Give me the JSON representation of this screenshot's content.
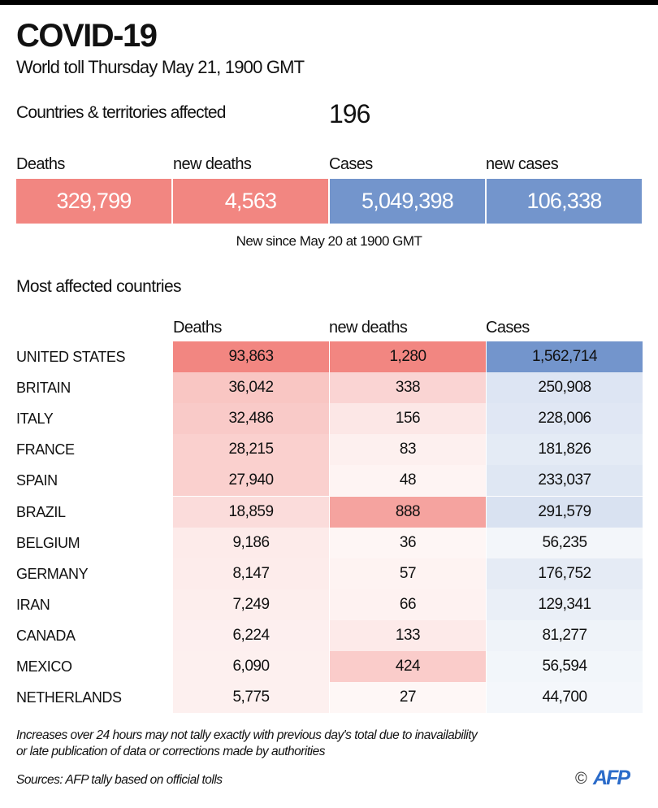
{
  "title": "COVID-19",
  "subtitle": "World toll Thursday May 21, 1900 GMT",
  "affected": {
    "label": "Countries & territories affected",
    "value": "196"
  },
  "summary": [
    {
      "label": "Deaths",
      "value": "329,799",
      "color": "#f28681"
    },
    {
      "label": "new deaths",
      "value": "4,563",
      "color": "#f28681"
    },
    {
      "label": "Cases",
      "value": "5,049,398",
      "color": "#7395cc"
    },
    {
      "label": "new cases",
      "value": "106,338",
      "color": "#7395cc"
    }
  ],
  "new_since": "New since  May 20 at 1900 GMT",
  "section_title": "Most affected countries",
  "chart_data": {
    "type": "table",
    "title": "Most affected countries",
    "columns": [
      "Deaths",
      "new deaths",
      "Cases"
    ],
    "column_colors": [
      "#f28681",
      "#f28681",
      "#7395cc"
    ],
    "rows": [
      {
        "country": "UNITED STATES",
        "values": [
          "93,863",
          "1,280",
          "1,562,714"
        ]
      },
      {
        "country": "BRITAIN",
        "values": [
          "36,042",
          "338",
          "250,908"
        ]
      },
      {
        "country": "ITALY",
        "values": [
          "32,486",
          "156",
          "228,006"
        ]
      },
      {
        "country": "FRANCE",
        "values": [
          "28,215",
          "83",
          "181,826"
        ]
      },
      {
        "country": "SPAIN",
        "values": [
          "27,940",
          "48",
          "233,037"
        ]
      },
      {
        "country": "BRAZIL",
        "values": [
          "18,859",
          "888",
          "291,579"
        ]
      },
      {
        "country": "BELGIUM",
        "values": [
          "9,186",
          "36",
          "56,235"
        ]
      },
      {
        "country": "GERMANY",
        "values": [
          "8,147",
          "57",
          "176,752"
        ]
      },
      {
        "country": "IRAN",
        "values": [
          "7,249",
          "66",
          "129,341"
        ]
      },
      {
        "country": "CANADA",
        "values": [
          "6,224",
          "133",
          "81,277"
        ]
      },
      {
        "country": "MEXICO",
        "values": [
          "6,090",
          "424",
          "56,594"
        ]
      },
      {
        "country": "NETHERLANDS",
        "values": [
          "5,775",
          "27",
          "44,700"
        ]
      }
    ]
  },
  "footnote_1": "Increases over 24 hours may not tally exactly with previous day's total due to inavailability",
  "footnote_2": "or late publication of data or corrections made by authorities",
  "sources": "Sources: AFP tally based on official tolls",
  "credit": {
    "copyright": "©",
    "logo": "AFP"
  }
}
